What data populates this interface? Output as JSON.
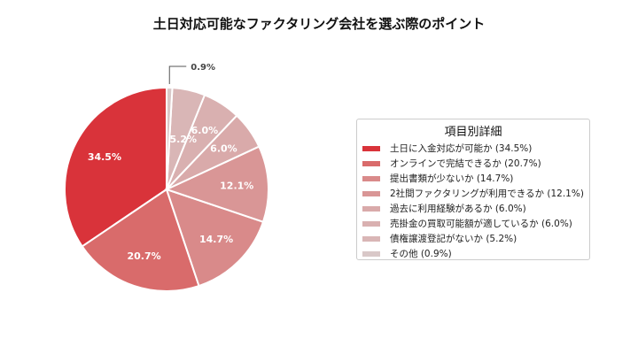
{
  "chart_data": {
    "type": "pie",
    "title": "土日対応可能なファクタリング会社を選ぶ際のポイント",
    "legend_title": "項目別詳細",
    "legend_placement": "right",
    "start_angle_deg": 90,
    "direction": "counterclockwise",
    "slices": [
      {
        "label": "土日に入金対応が可能か (34.5%)",
        "value": 34.5,
        "pct_label": "34.5%",
        "color": "#d9333a"
      },
      {
        "label": "オンラインで完結できるか (20.7%)",
        "value": 20.7,
        "pct_label": "20.7%",
        "color": "#d96b6b"
      },
      {
        "label": "提出書類が少ないか (14.7%)",
        "value": 14.7,
        "pct_label": "14.7%",
        "color": "#d98a8a"
      },
      {
        "label": "2社間ファクタリングが利用できるか (12.1%)",
        "value": 12.1,
        "pct_label": "12.1%",
        "color": "#d99696"
      },
      {
        "label": "過去に利用経験があるか (6.0%)",
        "value": 6.0,
        "pct_label": "6.0%",
        "color": "#d9aaaa"
      },
      {
        "label": "売掛金の買取可能額が適しているか (6.0%)",
        "value": 6.0,
        "pct_label": "6.0%",
        "color": "#d9b0b0"
      },
      {
        "label": "債権譲渡登記がないか (5.2%)",
        "value": 5.2,
        "pct_label": "5.2%",
        "color": "#d9b6b6"
      },
      {
        "label": "その他 (0.9%)",
        "value": 0.9,
        "pct_label": "0.9%",
        "color": "#d9c8c8"
      }
    ]
  }
}
